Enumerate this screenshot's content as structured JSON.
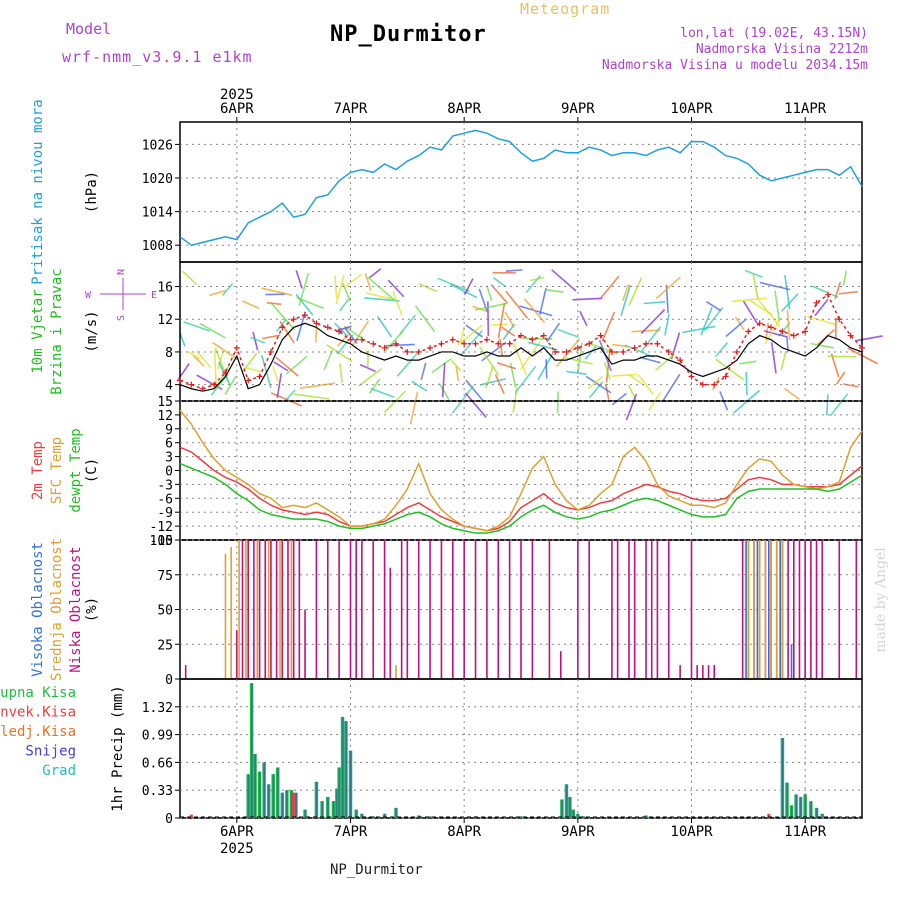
{
  "header": {
    "model_label": "Model",
    "model_name": "wrf-nmm_v3.9.1 e1km",
    "title": "NP_Durmitor",
    "subtitle": "Meteogram",
    "coords": "lon,lat (19.02E, 43.15N)",
    "elevation": "Nadmorska Visina 2212m",
    "model_elevation": "Nadmorska Visina u modelu 2034.15m",
    "footer": "NP_Durmitor",
    "credit": "made by Angel",
    "year_label": "2025"
  },
  "time_axis": {
    "days": [
      "6APR",
      "7APR",
      "8APR",
      "9APR",
      "10APR",
      "11APR"
    ],
    "start_day": 5.5,
    "end_day": 11.5
  },
  "colors": {
    "pressure": "#1ea0e0",
    "temp2m": "#f03c3c",
    "sfc_temp": "#e0a030",
    "dewpt": "#20c020",
    "wind_speed": "#000000",
    "gust": "#e02020",
    "high_cloud": "#3070e0",
    "mid_cloud": "#e0a030",
    "low_cloud": "#c01080",
    "total_precip": "#20c040",
    "conv_precip": "#f03c3c",
    "frozen": "#f07020",
    "snow": "#4040e0",
    "hail": "#20c0c0",
    "label_purple": "#b040d0",
    "title_gold": "#e8c060"
  },
  "chart_data": [
    {
      "type": "line",
      "panel": "pressure",
      "ylabel_lines": [
        "Pritisak na nivou mora"
      ],
      "unit": "(hPa)",
      "ylim": [
        1005,
        1030
      ],
      "yticks": [
        1008,
        1014,
        1020,
        1026
      ],
      "x": [
        5.5,
        5.6,
        5.7,
        5.8,
        5.9,
        6.0,
        6.1,
        6.2,
        6.3,
        6.4,
        6.5,
        6.6,
        6.7,
        6.8,
        6.9,
        7.0,
        7.1,
        7.2,
        7.3,
        7.4,
        7.5,
        7.6,
        7.7,
        7.8,
        7.9,
        8.0,
        8.1,
        8.2,
        8.3,
        8.4,
        8.5,
        8.6,
        8.7,
        8.8,
        8.9,
        9.0,
        9.1,
        9.2,
        9.3,
        9.4,
        9.5,
        9.6,
        9.7,
        9.8,
        9.9,
        10.0,
        10.1,
        10.2,
        10.3,
        10.4,
        10.5,
        10.6,
        10.7,
        10.8,
        10.9,
        11.0,
        11.1,
        11.2,
        11.3,
        11.4,
        11.5
      ],
      "series": [
        {
          "name": "",
          "values": [
            1009.5,
            1008.0,
            1008.5,
            1009.0,
            1009.5,
            1009.0,
            1012.0,
            1013.0,
            1014.0,
            1015.5,
            1013.0,
            1013.5,
            1016.5,
            1017.0,
            1019.5,
            1021.0,
            1021.5,
            1021.0,
            1022.5,
            1021.5,
            1023.0,
            1024.0,
            1025.5,
            1025.0,
            1027.5,
            1028.0,
            1028.5,
            1028.0,
            1027.0,
            1026.5,
            1024.5,
            1023.0,
            1023.5,
            1025.0,
            1024.5,
            1024.5,
            1025.5,
            1025.0,
            1024.0,
            1024.5,
            1024.5,
            1024.0,
            1025.0,
            1025.5,
            1024.5,
            1026.5,
            1026.5,
            1025.5,
            1024.0,
            1023.5,
            1022.5,
            1020.5,
            1019.5,
            1020.0,
            1020.5,
            1021.0,
            1021.5,
            1021.5,
            1020.5,
            1022.0,
            1018.5
          ]
        }
      ]
    },
    {
      "type": "line",
      "panel": "wind",
      "ylabel_lines": [
        "10m Vjetar",
        "Brzina i Pravac"
      ],
      "unit": "(m/s)",
      "compass": {
        "n": "N",
        "s": "S",
        "e": "E",
        "w": "W"
      },
      "ylim": [
        2,
        19
      ],
      "yticks": [
        4,
        8,
        12,
        16
      ],
      "x": [
        5.5,
        5.6,
        5.7,
        5.8,
        5.9,
        6.0,
        6.1,
        6.2,
        6.3,
        6.4,
        6.5,
        6.6,
        6.7,
        6.8,
        6.9,
        7.0,
        7.1,
        7.2,
        7.3,
        7.4,
        7.5,
        7.6,
        7.7,
        7.8,
        7.9,
        8.0,
        8.1,
        8.2,
        8.3,
        8.4,
        8.5,
        8.6,
        8.7,
        8.8,
        8.9,
        9.0,
        9.1,
        9.2,
        9.3,
        9.4,
        9.5,
        9.6,
        9.7,
        9.8,
        9.9,
        10.0,
        10.1,
        10.2,
        10.3,
        10.4,
        10.5,
        10.6,
        10.7,
        10.8,
        10.9,
        11.0,
        11.1,
        11.2,
        11.3,
        11.4,
        11.5
      ],
      "series": [
        {
          "name": "speed",
          "values": [
            4.0,
            3.5,
            3.2,
            3.5,
            5.0,
            7.5,
            3.5,
            4.0,
            6.5,
            9.5,
            11.0,
            11.5,
            11.0,
            10.0,
            9.5,
            9.0,
            8.0,
            7.5,
            7.0,
            7.5,
            7.0,
            7.0,
            7.5,
            8.0,
            8.0,
            7.5,
            7.5,
            8.0,
            7.5,
            7.5,
            8.5,
            7.5,
            8.5,
            7.0,
            7.0,
            7.5,
            8.0,
            8.5,
            6.5,
            7.0,
            7.0,
            7.5,
            7.5,
            7.0,
            6.5,
            5.5,
            5.0,
            5.5,
            6.0,
            7.0,
            9.0,
            10.0,
            9.5,
            8.5,
            8.0,
            7.5,
            8.5,
            10.0,
            9.5,
            8.5,
            8.0
          ]
        },
        {
          "name": "gust",
          "values": [
            4.5,
            4.0,
            3.5,
            4.0,
            5.5,
            8.5,
            4.5,
            5.0,
            8.0,
            11.0,
            12.0,
            12.5,
            11.5,
            11.0,
            10.5,
            9.5,
            9.5,
            9.0,
            8.5,
            9.0,
            8.0,
            8.0,
            8.5,
            9.0,
            9.5,
            9.0,
            9.0,
            9.5,
            9.0,
            9.0,
            10.0,
            9.5,
            10.0,
            8.0,
            8.0,
            8.5,
            9.0,
            10.0,
            8.0,
            8.0,
            8.5,
            9.0,
            9.0,
            8.0,
            7.0,
            5.0,
            4.0,
            4.0,
            5.0,
            8.0,
            10.5,
            11.5,
            11.0,
            10.5,
            10.0,
            10.5,
            14.0,
            15.0,
            12.0,
            10.0,
            8.5
          ]
        }
      ]
    },
    {
      "type": "line",
      "panel": "temperature",
      "ylabel_lines": [
        "2m Temp",
        "SFC Temp",
        "dewpt Temp"
      ],
      "unit": "(C)",
      "ylim": [
        -15,
        15
      ],
      "yticks": [
        -15,
        -12,
        -9,
        -6,
        -3,
        0,
        3,
        6,
        9,
        12,
        15
      ],
      "x": [
        5.5,
        5.6,
        5.7,
        5.8,
        5.9,
        6.0,
        6.1,
        6.2,
        6.3,
        6.4,
        6.5,
        6.6,
        6.7,
        6.8,
        6.9,
        7.0,
        7.1,
        7.2,
        7.3,
        7.4,
        7.5,
        7.6,
        7.7,
        7.8,
        7.9,
        8.0,
        8.1,
        8.2,
        8.3,
        8.4,
        8.5,
        8.6,
        8.7,
        8.8,
        8.9,
        9.0,
        9.1,
        9.2,
        9.3,
        9.4,
        9.5,
        9.6,
        9.7,
        9.8,
        9.9,
        10.0,
        10.1,
        10.2,
        10.3,
        10.4,
        10.5,
        10.6,
        10.7,
        10.8,
        10.9,
        11.0,
        11.1,
        11.2,
        11.3,
        11.4,
        11.5
      ],
      "series": [
        {
          "name": "2m Temp",
          "values": [
            5.0,
            4.0,
            2.0,
            0.0,
            -1.5,
            -2.5,
            -4.0,
            -6.0,
            -7.5,
            -8.5,
            -9.0,
            -9.5,
            -9.0,
            -9.5,
            -11.0,
            -12.0,
            -12.0,
            -11.5,
            -11.0,
            -9.5,
            -8.0,
            -7.0,
            -8.5,
            -10.0,
            -11.0,
            -12.0,
            -12.5,
            -13.0,
            -12.5,
            -11.0,
            -8.0,
            -6.5,
            -5.0,
            -7.0,
            -8.0,
            -8.5,
            -8.0,
            -7.0,
            -6.5,
            -5.0,
            -4.0,
            -3.0,
            -3.5,
            -4.5,
            -5.0,
            -6.0,
            -6.5,
            -6.5,
            -6.0,
            -4.0,
            -2.0,
            -1.5,
            -2.0,
            -3.0,
            -3.0,
            -3.5,
            -3.5,
            -3.5,
            -3.0,
            -1.0,
            1.0
          ]
        },
        {
          "name": "SFC Temp",
          "values": [
            13.0,
            10.0,
            6.0,
            2.5,
            0.0,
            -1.5,
            -3.0,
            -5.0,
            -6.0,
            -8.0,
            -7.5,
            -8.0,
            -7.0,
            -8.5,
            -10.0,
            -12.0,
            -12.0,
            -11.5,
            -10.5,
            -7.5,
            -4.0,
            1.5,
            -5.0,
            -8.5,
            -10.5,
            -12.0,
            -12.5,
            -13.0,
            -12.0,
            -10.0,
            -5.0,
            0.5,
            3.0,
            -3.0,
            -6.5,
            -8.5,
            -7.5,
            -5.0,
            -3.0,
            3.0,
            5.0,
            2.0,
            -3.0,
            -5.5,
            -6.5,
            -7.5,
            -7.5,
            -8.0,
            -7.0,
            -3.0,
            0.5,
            2.5,
            2.0,
            -1.0,
            -3.0,
            -3.5,
            -4.0,
            -3.5,
            -2.5,
            5.0,
            8.5
          ]
        },
        {
          "name": "dewpt Temp",
          "values": [
            1.5,
            0.5,
            -0.5,
            -1.5,
            -3.0,
            -5.0,
            -6.5,
            -8.5,
            -9.5,
            -10.0,
            -10.5,
            -10.5,
            -10.5,
            -11.0,
            -12.0,
            -12.5,
            -12.5,
            -12.0,
            -11.5,
            -10.5,
            -9.5,
            -9.0,
            -10.0,
            -11.5,
            -12.5,
            -13.0,
            -13.5,
            -13.5,
            -13.0,
            -12.0,
            -10.0,
            -8.5,
            -7.5,
            -9.0,
            -10.0,
            -10.5,
            -10.0,
            -9.0,
            -8.5,
            -7.5,
            -6.5,
            -6.0,
            -6.5,
            -7.5,
            -8.5,
            -9.5,
            -10.0,
            -10.0,
            -9.5,
            -6.0,
            -4.5,
            -4.0,
            -4.0,
            -4.0,
            -4.0,
            -4.0,
            -4.0,
            -4.5,
            -4.0,
            -2.5,
            -1.0
          ]
        }
      ]
    },
    {
      "type": "bar",
      "panel": "cloud",
      "ylabel_lines": [
        "Visoka Oblacnost",
        "Srednja Oblacnost",
        "Niska Oblacnost"
      ],
      "unit": "(%)",
      "ylim": [
        0,
        100
      ],
      "yticks": [
        0,
        25,
        50,
        75,
        100
      ],
      "series": [
        {
          "name": "Niska Oblacnost",
          "x": [
            5.55,
            6.0,
            6.05,
            6.1,
            6.15,
            6.2,
            6.25,
            6.3,
            6.35,
            6.4,
            6.45,
            6.5,
            6.55,
            6.6,
            6.7,
            6.8,
            6.9,
            7.0,
            7.05,
            7.1,
            7.2,
            7.3,
            7.35,
            7.45,
            7.5,
            7.6,
            7.7,
            7.8,
            7.9,
            8.0,
            8.1,
            8.2,
            8.3,
            8.4,
            8.5,
            8.6,
            8.75,
            8.85,
            9.0,
            9.1,
            9.3,
            9.35,
            9.45,
            9.5,
            9.6,
            9.65,
            9.7,
            9.8,
            9.9,
            10.0,
            10.05,
            10.1,
            10.15,
            10.2,
            10.45,
            10.5,
            10.55,
            10.6,
            10.65,
            10.7,
            10.75,
            10.8,
            10.85,
            10.9,
            10.95,
            11.0,
            11.05,
            11.1,
            11.15,
            11.3,
            11.45
          ],
          "values": [
            10,
            35,
            100,
            100,
            100,
            100,
            100,
            100,
            100,
            100,
            100,
            100,
            100,
            50,
            100,
            100,
            100,
            100,
            100,
            100,
            100,
            100,
            80,
            100,
            100,
            100,
            100,
            100,
            100,
            100,
            100,
            100,
            100,
            100,
            100,
            100,
            100,
            20,
            100,
            100,
            100,
            100,
            100,
            100,
            100,
            100,
            100,
            100,
            10,
            100,
            10,
            10,
            10,
            10,
            100,
            100,
            100,
            100,
            100,
            100,
            100,
            100,
            100,
            100,
            100,
            100,
            100,
            100,
            100,
            100,
            100
          ]
        },
        {
          "name": "Srednja Oblacnost",
          "x": [
            5.9,
            5.95,
            6.02,
            6.08,
            6.18,
            6.28,
            6.38,
            6.48,
            7.4,
            10.5,
            10.55,
            10.6,
            10.65,
            10.7,
            10.75,
            10.8
          ],
          "values": [
            90,
            95,
            100,
            100,
            100,
            100,
            100,
            100,
            10,
            100,
            100,
            100,
            100,
            100,
            100,
            100
          ]
        },
        {
          "name": "Visoka Oblacnost",
          "x": [
            10.48,
            10.58,
            10.68,
            10.78,
            10.88
          ],
          "values": [
            100,
            100,
            100,
            100,
            25
          ]
        }
      ]
    },
    {
      "type": "bar",
      "panel": "precip",
      "ylabel_lines": [
        "Ukupna Kisa",
        "Konvek.Kisa",
        "Zaledj.Kisa",
        "Snijeg",
        "Grad"
      ],
      "unit": "1hr Precip (mm)",
      "ylim": [
        0,
        1.65
      ],
      "yticks": [
        0,
        0.33,
        0.66,
        0.99,
        1.32
      ],
      "series": [
        {
          "name": "Ukupna Kisa",
          "x": [
            6.1,
            6.13,
            6.16,
            6.2,
            6.24,
            6.28,
            6.32,
            6.36,
            6.4,
            6.44,
            6.48,
            6.52,
            6.6,
            6.7,
            6.75,
            6.8,
            6.85,
            6.88,
            6.9,
            6.93,
            6.96,
            7.0,
            7.05,
            7.1,
            7.2,
            7.3,
            7.4,
            7.6,
            7.7,
            8.1,
            8.5,
            8.86,
            8.9,
            8.93,
            8.96,
            9.0,
            9.05,
            9.6,
            10.8,
            10.84,
            10.88,
            10.92,
            10.96,
            11.0,
            11.05,
            11.1,
            11.15
          ],
          "values": [
            0.52,
            1.6,
            0.76,
            0.55,
            0.66,
            0.4,
            0.52,
            0.6,
            0.3,
            0.33,
            0.33,
            0.3,
            0.1,
            0.43,
            0.2,
            0.25,
            0.2,
            0.35,
            0.6,
            1.2,
            1.15,
            0.8,
            0.1,
            0.05,
            0.02,
            0.05,
            0.12,
            0.03,
            0.02,
            0.02,
            0.02,
            0.22,
            0.4,
            0.25,
            0.1,
            0.05,
            0.02,
            0.03,
            0.95,
            0.42,
            0.15,
            0.28,
            0.25,
            0.28,
            0.2,
            0.12,
            0.05
          ]
        },
        {
          "name": "Konvek.Kisa",
          "x": [
            5.6,
            6.5,
            10.68
          ],
          "values": [
            0.04,
            0.3,
            0.05
          ]
        }
      ]
    }
  ]
}
